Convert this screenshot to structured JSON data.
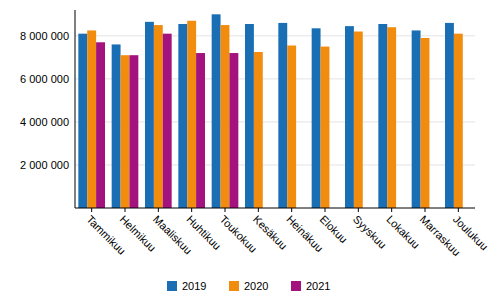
{
  "chart_data": {
    "type": "bar",
    "categories": [
      "Tammikuu",
      "Helmikuu",
      "Maaliskuu",
      "Huhtikuu",
      "Toukokuu",
      "Kesäkuu",
      "Heinäkuu",
      "Elokuu",
      "Syyskuu",
      "Lokakuu",
      "Marraskuu",
      "Joulukuu"
    ],
    "series": [
      {
        "name": "2019",
        "color": "#1a6eb4",
        "values": [
          8100000,
          7600000,
          8650000,
          8550000,
          9000000,
          8550000,
          8600000,
          8350000,
          8450000,
          8550000,
          8250000,
          8600000
        ]
      },
      {
        "name": "2020",
        "color": "#f28c0f",
        "values": [
          8250000,
          7100000,
          8500000,
          8700000,
          8500000,
          7250000,
          7550000,
          7500000,
          8200000,
          8400000,
          7900000,
          8100000
        ]
      },
      {
        "name": "2021",
        "color": "#a3127d",
        "values": [
          7700000,
          7100000,
          8100000,
          7200000,
          7200000,
          null,
          null,
          null,
          null,
          null,
          null,
          null
        ]
      }
    ],
    "ylim": [
      0,
      9200000
    ],
    "yticks": [
      {
        "value": 2000000,
        "label": "2 000 000"
      },
      {
        "value": 4000000,
        "label": "4 000 000"
      },
      {
        "value": 6000000,
        "label": "6 000 000"
      },
      {
        "value": 8000000,
        "label": "8 000 000"
      }
    ],
    "grid": true,
    "legend": "bottom"
  }
}
